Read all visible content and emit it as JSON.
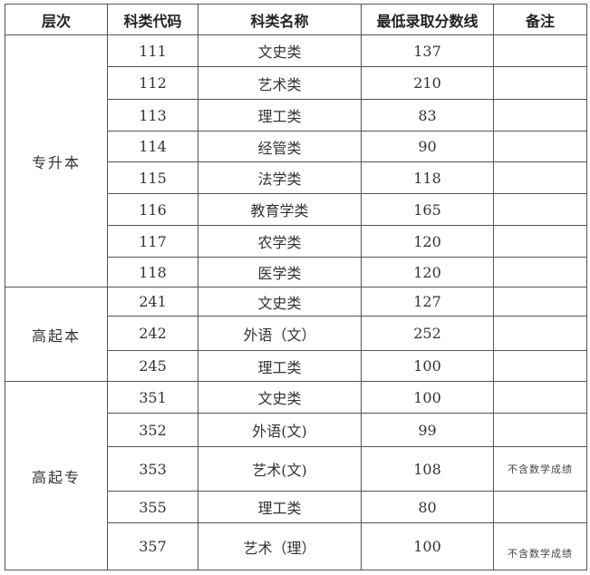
{
  "headers": [
    "层次",
    "科类代码",
    "科类名称",
    "最低录取分数线",
    "备注"
  ],
  "groups": [
    {
      "level": "专升本",
      "rows": [
        {
          "code": "111",
          "name": "文史类",
          "score": "137",
          "note": ""
        },
        {
          "code": "112",
          "name": "艺术类",
          "score": "210",
          "note": ""
        },
        {
          "code": "113",
          "name": "理工类",
          "score": "83",
          "note": ""
        },
        {
          "code": "114",
          "name": "经管类",
          "score": "90",
          "note": ""
        },
        {
          "code": "115",
          "name": "法学类",
          "score": "118",
          "note": ""
        },
        {
          "code": "116",
          "name": "教育学类",
          "score": "165",
          "note": ""
        },
        {
          "code": "117",
          "name": "农学类",
          "score": "120",
          "note": ""
        },
        {
          "code": "118",
          "name": "医学类",
          "score": "120",
          "note": ""
        }
      ]
    },
    {
      "level": "高起本",
      "rows": [
        {
          "code": "241",
          "name": "文史类",
          "score": "127",
          "note": ""
        },
        {
          "code": "242",
          "name": "外语（文）",
          "score": "252",
          "note": ""
        },
        {
          "code": "245",
          "name": "理工类",
          "score": "100",
          "note": ""
        }
      ]
    },
    {
      "level": "高起专",
      "rows": [
        {
          "code": "351",
          "name": "文史类",
          "score": "100",
          "note": ""
        },
        {
          "code": "352",
          "name": "外语(文)",
          "score": "99",
          "note": ""
        },
        {
          "code": "353",
          "name": "艺术(文)",
          "score": "108",
          "note": "不含数学成绩"
        },
        {
          "code": "355",
          "name": "理工类",
          "score": "80",
          "note": ""
        },
        {
          "code": "357",
          "name": "艺术（理）",
          "score": "100",
          "note": "不含数学成绩"
        }
      ]
    }
  ]
}
